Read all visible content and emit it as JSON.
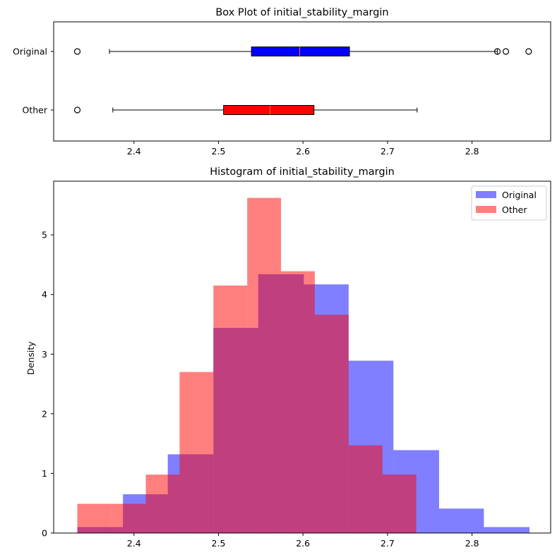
{
  "chart_data": [
    {
      "type": "box",
      "title": "Box Plot of initial_stability_margin",
      "xlim": [
        2.305,
        2.893
      ],
      "x_ticks": [
        2.4,
        2.5,
        2.6,
        2.7,
        2.8
      ],
      "boxes": [
        {
          "label": "Original",
          "color": "#0000ff",
          "whisker_low": 2.371,
          "q1": 2.539,
          "median": 2.596,
          "q3": 2.655,
          "whisker_high": 2.83,
          "outliers": [
            2.333,
            2.83,
            2.84,
            2.867
          ]
        },
        {
          "label": "Other",
          "color": "#ff0000",
          "whisker_low": 2.375,
          "q1": 2.506,
          "median": 2.561,
          "q3": 2.613,
          "whisker_high": 2.735,
          "outliers": [
            2.333
          ]
        }
      ]
    },
    {
      "type": "histogram",
      "title": "Histogram of initial_stability_margin",
      "ylabel": "Density",
      "xlim": [
        2.305,
        2.893
      ],
      "ylim": [
        0,
        5.9
      ],
      "x_ticks": [
        2.4,
        2.5,
        2.6,
        2.7,
        2.8
      ],
      "y_ticks": [
        0,
        1,
        2,
        3,
        4,
        5
      ],
      "legend_position": "top-right",
      "series": [
        {
          "name": "Original",
          "color": "#0000ff",
          "opacity": 0.5,
          "bin_edges": [
            2.333,
            2.387,
            2.44,
            2.494,
            2.547,
            2.601,
            2.654,
            2.707,
            2.761,
            2.814,
            2.868
          ],
          "values": [
            0.1,
            0.65,
            1.32,
            3.44,
            4.34,
            4.17,
            2.89,
            1.39,
            0.41,
            0.1
          ]
        },
        {
          "name": "Other",
          "color": "#ff0000",
          "opacity": 0.5,
          "bin_edges": [
            2.333,
            2.373,
            2.414,
            2.454,
            2.494,
            2.534,
            2.574,
            2.614,
            2.654,
            2.694,
            2.734
          ],
          "values": [
            0.49,
            0.49,
            0.98,
            2.7,
            4.15,
            5.62,
            4.39,
            3.66,
            1.47,
            0.98
          ]
        }
      ]
    }
  ]
}
